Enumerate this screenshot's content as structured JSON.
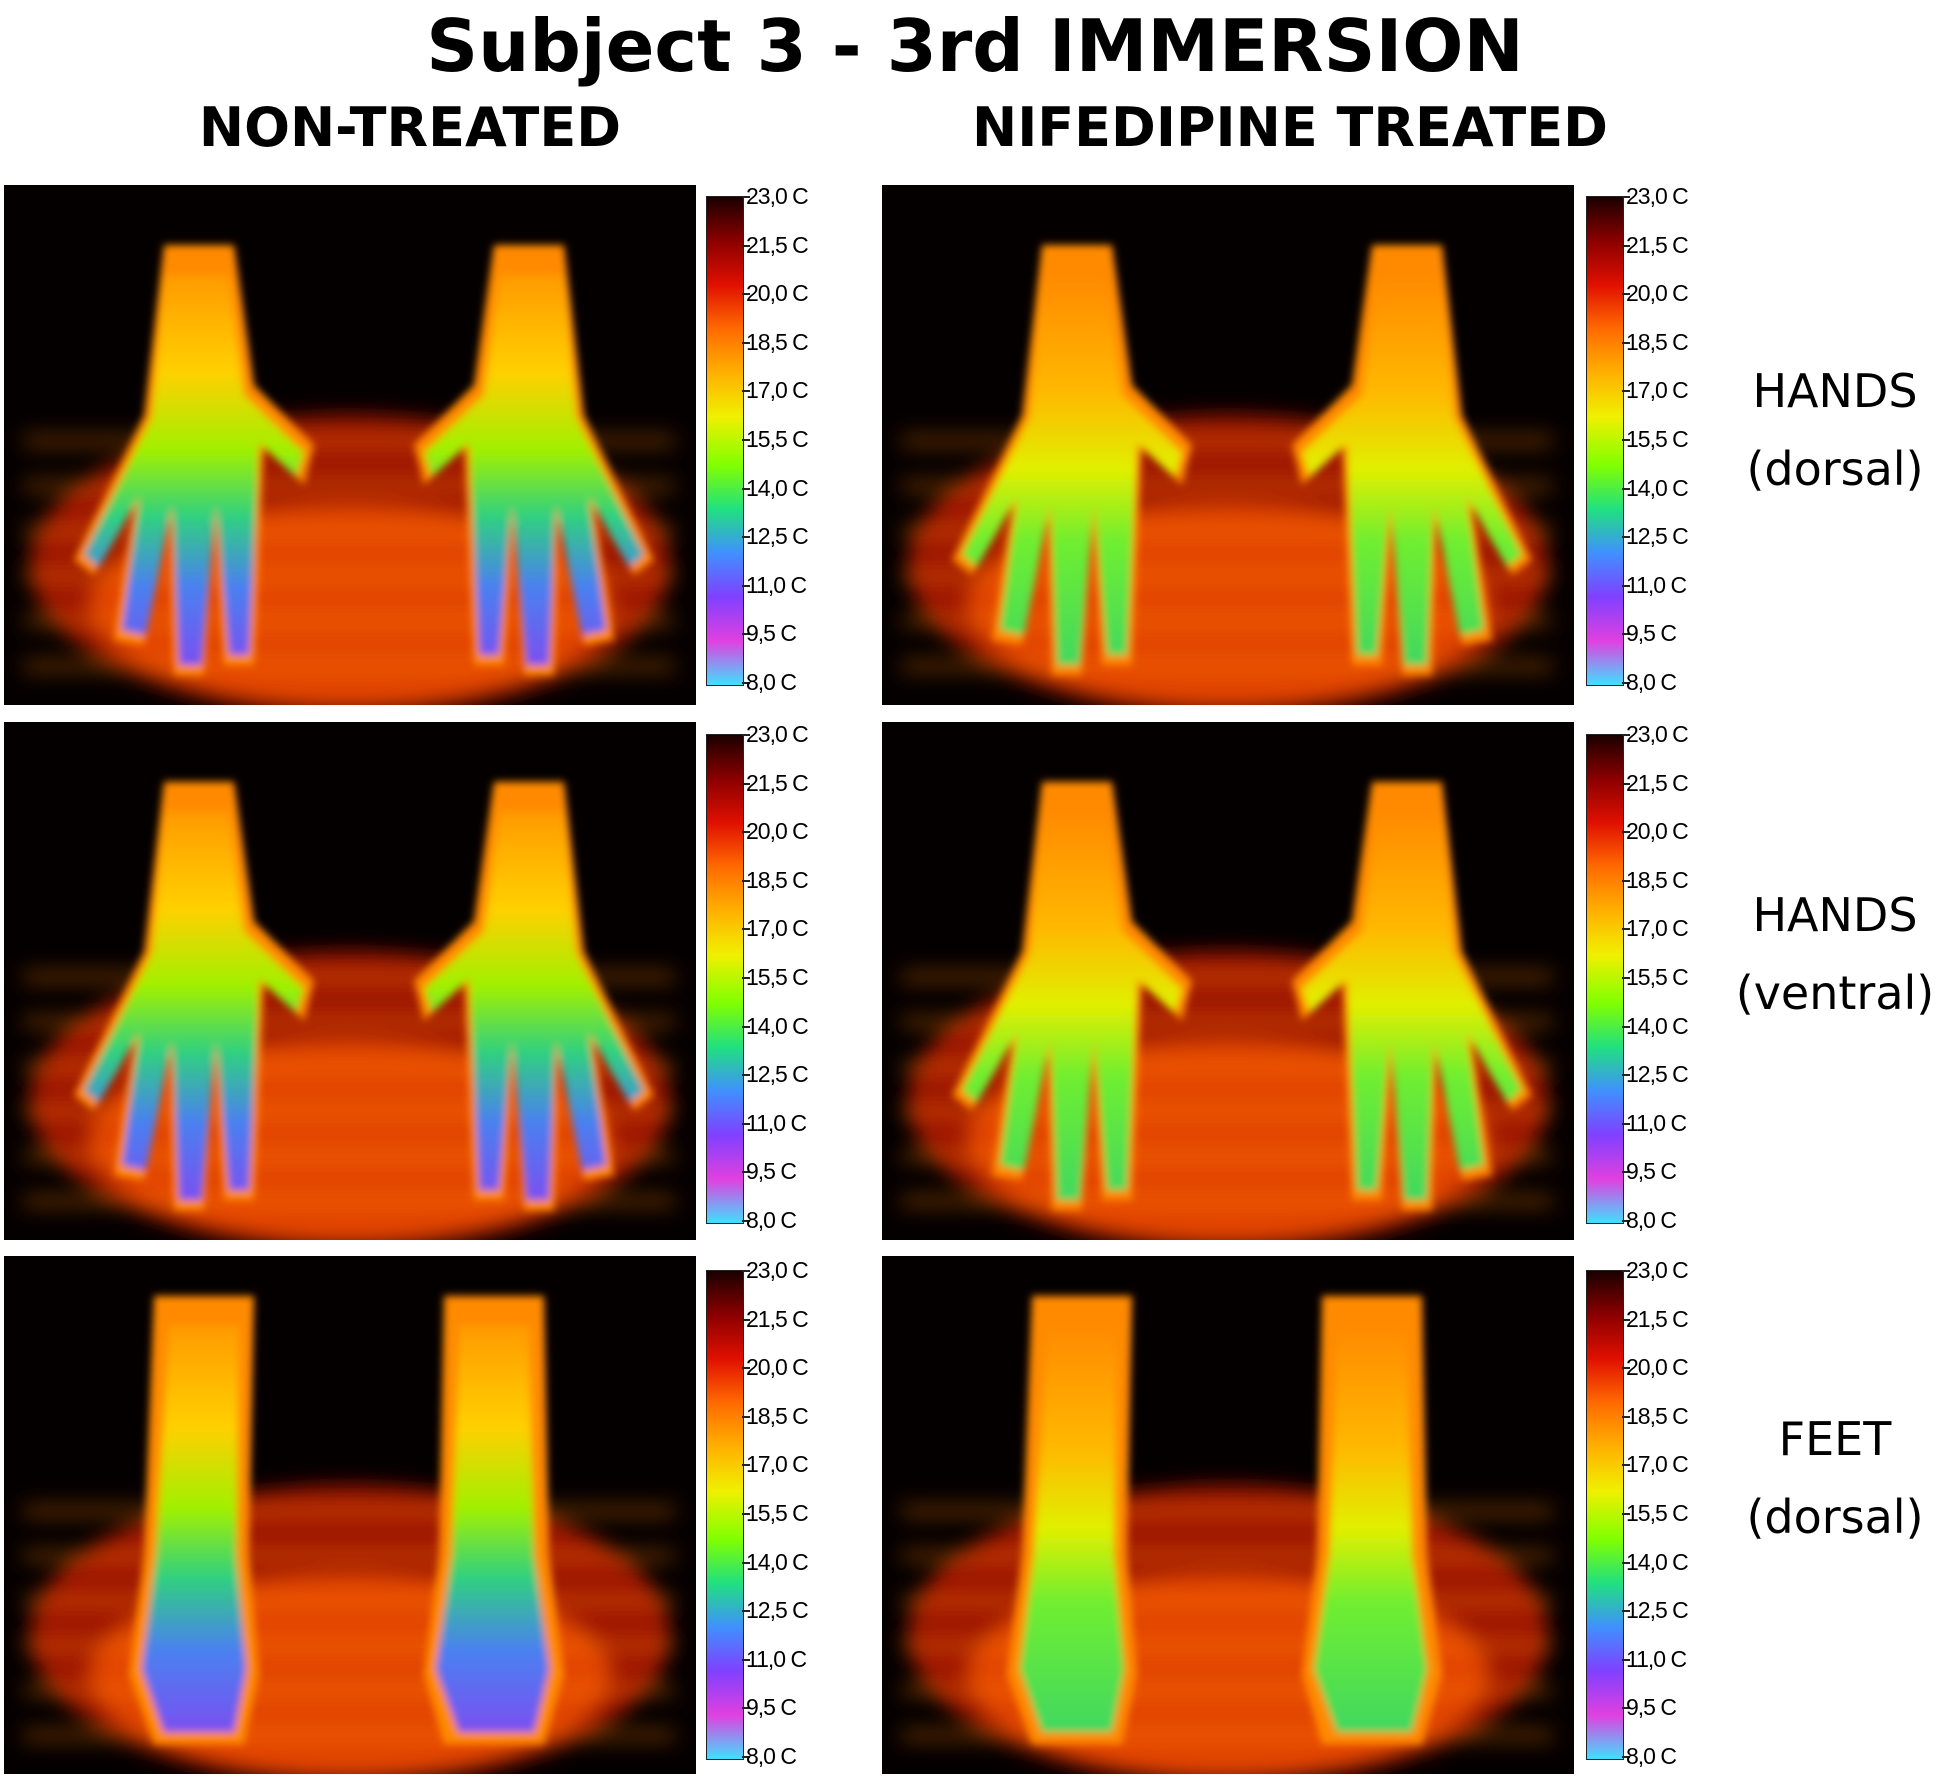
{
  "title": "Subject 3 - 3rd IMMERSION",
  "columns": [
    "NON-TREATED",
    "NIFEDIPINE TREATED"
  ],
  "rows": [
    {
      "line1": "HANDS",
      "line2": "(dorsal)"
    },
    {
      "line1": "HANDS",
      "line2": "(ventral)"
    },
    {
      "line1": "FEET",
      "line2": "(dorsal)"
    }
  ],
  "scale_labels": [
    "23,0 C",
    "21,5 C",
    "20,0 C",
    "18,5 C",
    "17,0 C",
    "15,5 C",
    "14,0 C",
    "12,5 C",
    "11,0 C",
    "9,5 C",
    "8,0 C"
  ],
  "colormap": [
    "#1a0000",
    "#8b0000",
    "#e01000",
    "#ff6a00",
    "#ffb000",
    "#f0f000",
    "#80ff00",
    "#20e080",
    "#4090ff",
    "#8040ff",
    "#e040e0",
    "#40e0ff"
  ]
}
